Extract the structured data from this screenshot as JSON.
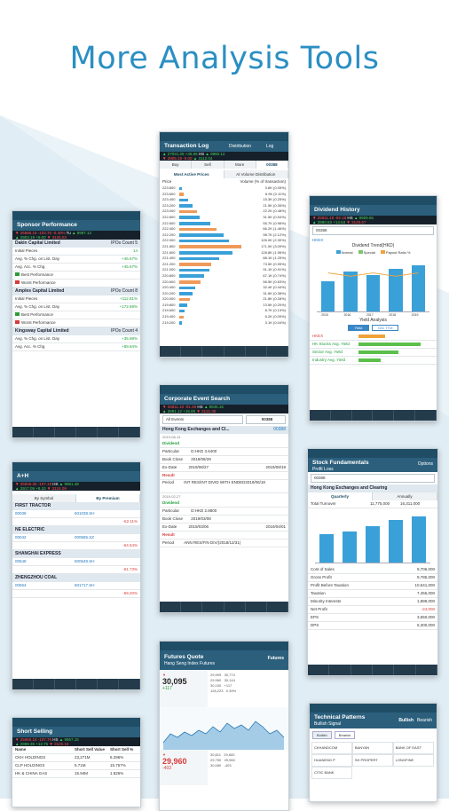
{
  "headline": "More Analysis Tools",
  "colors": {
    "headline": "#2a8fc3",
    "header": "#2b5f7c",
    "up": "#1f9d3a",
    "down": "#d83b3b",
    "bar_orange": "#ef9a5a",
    "bar_blue": "#3aa0d8"
  },
  "cards": {
    "sponsor": {
      "title": "Sponsor Performance",
      "firms": [
        {
          "name": "Dakin Capital Limited",
          "count": "IPOs Count 5"
        },
        {
          "name": "Amples Capital Limited",
          "count": "IPOs Count 8"
        },
        {
          "name": "Kingsway Capital Limited",
          "count": "IPOs Count 4"
        }
      ],
      "rows": [
        "Initial Pieces",
        "Avg. % Chg. on List. Day",
        "Avg. Acc. % Chg",
        "Best Performance",
        "Worst Performance"
      ],
      "values": [
        "14",
        "+46.67%",
        "+45.67%",
        "+112.81%",
        "+172.69%",
        "+35.98%",
        "+89.84%"
      ]
    },
    "transaction": {
      "title": "Transaction Log",
      "tab_a": "Distribution",
      "tab_b": "Log",
      "segments": [
        "Buy",
        "Sell",
        "More"
      ],
      "code": "00388",
      "subtabs": [
        "Most Active Prices",
        "At Volume Distribution"
      ],
      "col_price": "Price",
      "col_volume": "Volume (% of transaction)",
      "prices": [
        "223.800",
        "223.600",
        "223.400",
        "223.200",
        "223.000",
        "222.800",
        "222.600",
        "222.400",
        "222.200",
        "222.000",
        "221.800",
        "221.600",
        "221.400",
        "221.200",
        "221.000",
        "220.800",
        "220.600",
        "220.400",
        "220.200",
        "220.000",
        "219.800",
        "219.600",
        "219.400",
        "219.200"
      ],
      "volumes": [
        "3.6K (0.05%)",
        "6.9K (0.11%)",
        "15.3K (0.25%)",
        "21.5K (0.35%)",
        "22.2K (0.48%)",
        "31.5K (0.54%)",
        "55.7K (0.96%)",
        "66.2K (1.46%)",
        "98.7K (2.12%)",
        "126.0K (2.30%)",
        "171.0K (3.09%)",
        "128.8K (1.96%)",
        "88.1K (1.25%)",
        "73.5K (0.95%)",
        "91.1K (0.91%)",
        "67.1K (0.74%)",
        "56.5K (0.63%)",
        "32.4K (0.44%)",
        "31.6K (0.38%)",
        "21.8K (0.28%)",
        "13.5K (0.20%)",
        "8.7K (0.13%)",
        "6.2K (0.09%)",
        "3.1K (0.04%)"
      ],
      "share": [
        4,
        7,
        14,
        22,
        28,
        33,
        50,
        60,
        72,
        80,
        100,
        85,
        64,
        52,
        48,
        40,
        34,
        26,
        22,
        17,
        13,
        9,
        7,
        4
      ]
    },
    "dividend": {
      "title": "Dividend History",
      "search": "00388",
      "code": "HKEX",
      "chart_title": "Dividend Trend(HKD)",
      "legend": [
        "Normal",
        "Special",
        "Payout Ratio %"
      ],
      "years": [
        "2015",
        "2016",
        "2017",
        "2018",
        "2019"
      ],
      "heights": [
        0.55,
        0.72,
        0.66,
        0.78,
        0.84
      ],
      "yield_title": "Yield Analysis",
      "yield_tabs": [
        "Yield",
        "Div/ TTM"
      ],
      "yield_rows": [
        "HKEX",
        "HK Stocks Avg. Yield",
        "Sector Avg. Yield",
        "Industry Avg. Yield"
      ]
    },
    "corporate": {
      "title": "Corporate Event Search",
      "filter": "All Events",
      "code": "00388",
      "company": "Hong Kong Exchanges and Cl...",
      "date1": "2019-08-14",
      "date2": "2019-02-27",
      "labels": [
        "Dividend",
        "Particular",
        "Book Close",
        "Ex-Date",
        "Result",
        "Period"
      ],
      "events": [
        {
          "type": "Dividend",
          "particular": "D:HKD 3.6400",
          "book_close": "2019/08/29",
          "ex_date": "2019/08/27",
          "payable": "2019/09/19"
        },
        {
          "type": "Result",
          "particular": "INT RES/INT DIVID WITH ENDED2019/06/18"
        },
        {
          "type": "Dividend",
          "particular": "D:HKD 2.8800",
          "book_close": "2019/03/08",
          "ex_date": "2019/03/06",
          "payable": "2019/04/01"
        },
        {
          "type": "Result",
          "particular": "ANN RES/FIN DIV/(2018/12/31)"
        }
      ]
    },
    "stock_fund": {
      "title": "Stock Fundamentals",
      "subtitle": "Profit Loss",
      "options": "Options",
      "search": "00388",
      "company": "Hong Kong Exchanges and Clearing",
      "tabs": [
        "Quarterly",
        "Annually"
      ],
      "metric": "Total Turnover",
      "values": [
        "11,775,000",
        "16,311,000"
      ],
      "years": [
        "2015",
        "2016",
        "2017",
        "2018",
        "2019"
      ],
      "heights": [
        0.55,
        0.6,
        0.7,
        0.82,
        0.9
      ],
      "rows": [
        "Cost of Sales",
        "Gross Profit",
        "Profit Before Taxation",
        "Taxation",
        "Minority Interests",
        "Net Profit",
        "EPS",
        "DPS"
      ],
      "numbers": [
        "9,706,000",
        "9,785,000",
        "10,541,000",
        "7,455,000",
        "1,889,000",
        "-24,000",
        "3,650,000",
        "6,300,000"
      ]
    },
    "ah": {
      "title": "A+H",
      "sort": "By Premium",
      "sort_alt": "By Symbol",
      "groups": [
        {
          "name": "FIRST TRACTOR",
          "h": "00038",
          "a": "601038.SH",
          "ratio": "-62.11%"
        },
        {
          "name": "NE ELECTRIC",
          "h": "00042",
          "a": "000585.SZ",
          "ratio": "-64.54%"
        },
        {
          "name": "SHANGHAI EXPRESS",
          "h": "00548",
          "a": "600548.SH",
          "ratio": "-61.73%"
        },
        {
          "name": "ZHENGZHOU COAL",
          "h": "00564",
          "a": "601717.SH",
          "ratio": "-59.20%"
        }
      ]
    },
    "futures": {
      "title": "Futures Quote",
      "subtitle": "Hang Seng Index Futures",
      "tab": "Futures",
      "price": "30,095",
      "change": "+117",
      "price2": "29,960",
      "change2": "-403"
    },
    "short": {
      "title": "Short Selling",
      "headers": [
        "Name",
        "Short Sell Value",
        "Short Sell %"
      ],
      "rows": [
        {
          "name": "CKH HOLDINGS",
          "value": "23,271M",
          "pct": "6.296%"
        },
        {
          "name": "CLP HOLDINGS",
          "value": "5.71M",
          "pct": "15.757%"
        },
        {
          "name": "HK & CHINA GAS",
          "value": "15.94M",
          "pct": "1.826%"
        }
      ]
    },
    "technical": {
      "title": "Technical Patterns",
      "subtitle": "Bullish Signal",
      "tabs": [
        "Bullish",
        "Bearish"
      ],
      "items": [
        "CKHANDCOM",
        "BANYAN",
        "BANK OF EAST",
        "HUANENG P",
        "SH PROPERT",
        "LONGFINE",
        "CITIC BANK"
      ]
    }
  }
}
